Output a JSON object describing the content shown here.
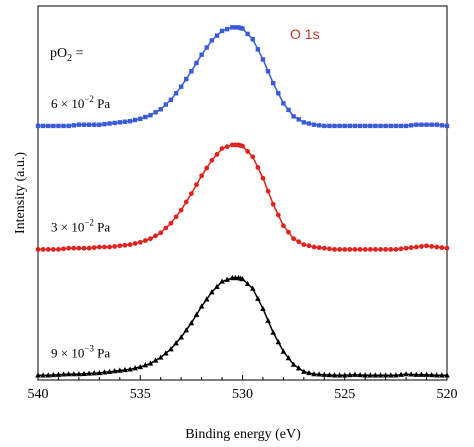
{
  "chart_data": {
    "type": "line",
    "title": "",
    "xlabel": "Binding energy (eV)",
    "ylabel": "Intensity (a.u.)",
    "xlim": [
      540,
      520
    ],
    "x_reversed": true,
    "x_ticks": [
      540,
      535,
      530,
      525,
      520
    ],
    "x_tick_labels": [
      "540",
      "535",
      "530",
      "525",
      "520"
    ],
    "ylim": [
      0,
      3.15
    ],
    "y_ticks_shown": false,
    "grid": false,
    "legend": "none",
    "annotation": {
      "text": "O 1s",
      "color": "#c0392b"
    },
    "pressure_label": {
      "prefix": "pO",
      "sub": "2",
      "suffix": " ="
    },
    "series": [
      {
        "label_mantissa": "9 × 10",
        "label_exp": "−3",
        "label_unit": " Pa",
        "color": "#000000",
        "marker": "triangle",
        "x": [
          540,
          539.5,
          539,
          538.5,
          538,
          537.5,
          537,
          536.5,
          536,
          535.5,
          535,
          534.5,
          534,
          533.5,
          533,
          532.5,
          532,
          531.5,
          531,
          530.5,
          530.2,
          530,
          529.5,
          529,
          528.5,
          528,
          527.5,
          527,
          526.5,
          526,
          525.5,
          525,
          524.5,
          524,
          523.5,
          523,
          522.5,
          522,
          521.5,
          521,
          520.5,
          520
        ],
        "y": [
          0.04,
          0.04,
          0.045,
          0.05,
          0.05,
          0.055,
          0.06,
          0.07,
          0.08,
          0.09,
          0.11,
          0.14,
          0.19,
          0.26,
          0.36,
          0.48,
          0.62,
          0.74,
          0.83,
          0.86,
          0.86,
          0.85,
          0.77,
          0.6,
          0.4,
          0.24,
          0.13,
          0.07,
          0.05,
          0.045,
          0.04,
          0.04,
          0.045,
          0.04,
          0.04,
          0.04,
          0.04,
          0.05,
          0.045,
          0.045,
          0.04,
          0.04
        ]
      },
      {
        "label_mantissa": "3 × 10",
        "label_exp": "−2",
        "label_unit": " Pa",
        "color": "#e0231e",
        "marker": "circle",
        "x": [
          540,
          539.5,
          539,
          538.5,
          538,
          537.5,
          537,
          536.5,
          536,
          535.5,
          535,
          534.5,
          534,
          533.5,
          533,
          532.5,
          532,
          531.5,
          531,
          530.5,
          530.2,
          530,
          529.5,
          529,
          528.5,
          528,
          527.5,
          527,
          526.5,
          526,
          525.5,
          525,
          524.5,
          524,
          523.5,
          523,
          522.5,
          522,
          521.5,
          521,
          520.5,
          520
        ],
        "y": [
          1.1,
          1.1,
          1.1,
          1.11,
          1.11,
          1.11,
          1.12,
          1.12,
          1.13,
          1.14,
          1.16,
          1.19,
          1.24,
          1.32,
          1.43,
          1.57,
          1.72,
          1.85,
          1.95,
          1.98,
          1.98,
          1.97,
          1.88,
          1.7,
          1.48,
          1.3,
          1.19,
          1.14,
          1.12,
          1.11,
          1.1,
          1.1,
          1.1,
          1.1,
          1.1,
          1.1,
          1.1,
          1.11,
          1.12,
          1.13,
          1.12,
          1.11
        ]
      },
      {
        "label_mantissa": "6 × 10",
        "label_exp": "−2",
        "label_unit": " Pa",
        "color": "#3a5bd9",
        "marker": "square",
        "x": [
          540,
          539.5,
          539,
          538.5,
          538,
          537.5,
          537,
          536.5,
          536,
          535.5,
          535,
          534.5,
          534,
          533.5,
          533,
          532.5,
          532,
          531.5,
          531,
          530.5,
          530.2,
          530,
          529.5,
          529,
          528.5,
          528,
          527.5,
          527,
          526.5,
          526,
          525.5,
          525,
          524.5,
          524,
          523.5,
          523,
          522.5,
          522,
          521.5,
          521,
          520.5,
          520
        ],
        "y": [
          2.14,
          2.14,
          2.14,
          2.14,
          2.15,
          2.15,
          2.15,
          2.16,
          2.17,
          2.18,
          2.2,
          2.23,
          2.28,
          2.36,
          2.47,
          2.6,
          2.74,
          2.86,
          2.94,
          2.97,
          2.97,
          2.96,
          2.87,
          2.7,
          2.5,
          2.33,
          2.22,
          2.17,
          2.15,
          2.14,
          2.14,
          2.14,
          2.14,
          2.14,
          2.14,
          2.14,
          2.14,
          2.14,
          2.15,
          2.15,
          2.15,
          2.14
        ]
      }
    ]
  }
}
